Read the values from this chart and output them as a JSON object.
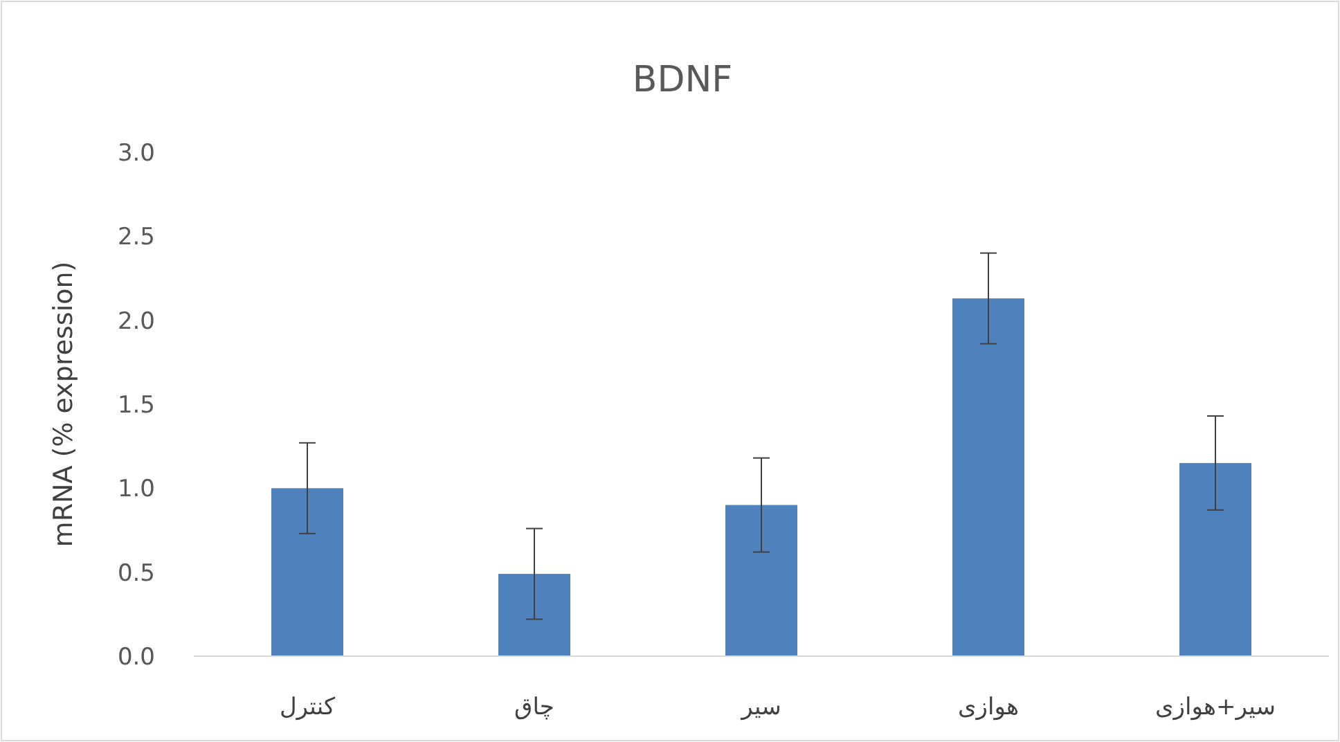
{
  "chart_data": {
    "type": "bar",
    "title": "BDNF",
    "ylabel": "mRNA (% expression)",
    "categories": [
      "کنترل",
      "چاق",
      "سیر",
      "هوازی",
      "سیر+هوازی"
    ],
    "values": [
      1.0,
      0.49,
      0.9,
      2.13,
      1.15
    ],
    "errors": [
      0.27,
      0.27,
      0.28,
      0.27,
      0.28
    ],
    "color": "#4f81bd",
    "ylim": [
      0,
      3
    ],
    "yticks": [
      {
        "value": 0,
        "label": "0.0"
      },
      {
        "value": 0.5,
        "label": "0.5"
      },
      {
        "value": 1,
        "label": "1.0"
      },
      {
        "value": 1.5,
        "label": "1.5"
      },
      {
        "value": 2,
        "label": "2.0"
      },
      {
        "value": 2.5,
        "label": "2.5"
      },
      {
        "value": 3,
        "label": "3.0"
      }
    ]
  }
}
